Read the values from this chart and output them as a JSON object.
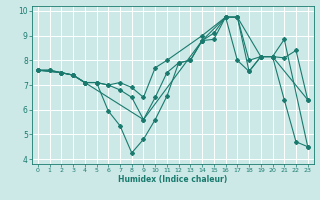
{
  "xlabel": "Humidex (Indice chaleur)",
  "xlim": [
    -0.5,
    23.5
  ],
  "ylim": [
    3.8,
    10.2
  ],
  "yticks": [
    4,
    5,
    6,
    7,
    8,
    9,
    10
  ],
  "xticks": [
    0,
    1,
    2,
    3,
    4,
    5,
    6,
    7,
    8,
    9,
    10,
    11,
    12,
    13,
    14,
    15,
    16,
    17,
    18,
    19,
    20,
    21,
    22,
    23
  ],
  "bg_color": "#cce9e7",
  "line_color": "#1a7a6e",
  "grid_color": "#ffffff",
  "lines": [
    {
      "x": [
        0,
        1,
        2,
        3,
        4,
        5,
        6,
        7,
        8,
        9,
        10,
        11,
        12,
        13,
        14,
        15,
        16,
        17,
        18,
        19,
        20,
        21,
        22,
        23
      ],
      "y": [
        7.6,
        7.6,
        7.5,
        7.4,
        7.1,
        7.1,
        5.95,
        5.35,
        4.25,
        4.8,
        5.6,
        6.55,
        7.9,
        8.0,
        8.8,
        9.1,
        9.75,
        9.75,
        7.55,
        8.15,
        8.15,
        6.4,
        4.7,
        4.5
      ]
    },
    {
      "x": [
        0,
        1,
        2,
        3,
        4,
        5,
        6,
        7,
        8,
        9,
        10,
        11,
        12,
        13,
        14,
        15,
        16,
        17,
        18,
        19,
        20,
        21,
        22,
        23
      ],
      "y": [
        7.6,
        7.6,
        7.5,
        7.4,
        7.1,
        7.1,
        7.0,
        6.8,
        6.5,
        5.6,
        6.5,
        7.5,
        7.9,
        8.0,
        8.8,
        8.85,
        9.75,
        8.0,
        7.55,
        8.15,
        8.15,
        8.1,
        8.4,
        6.4
      ]
    },
    {
      "x": [
        0,
        2,
        3,
        4,
        5,
        6,
        7,
        8,
        9,
        10,
        11,
        14,
        16,
        17,
        18,
        19,
        20,
        23
      ],
      "y": [
        7.6,
        7.5,
        7.4,
        7.1,
        7.1,
        7.0,
        7.1,
        6.9,
        6.5,
        7.7,
        8.0,
        9.0,
        9.75,
        9.75,
        8.0,
        8.15,
        8.15,
        6.4
      ]
    },
    {
      "x": [
        0,
        2,
        3,
        4,
        9,
        14,
        16,
        17,
        19,
        20,
        21,
        23
      ],
      "y": [
        7.6,
        7.5,
        7.4,
        7.1,
        5.6,
        8.8,
        9.75,
        9.75,
        8.15,
        8.15,
        8.85,
        4.5
      ]
    }
  ]
}
